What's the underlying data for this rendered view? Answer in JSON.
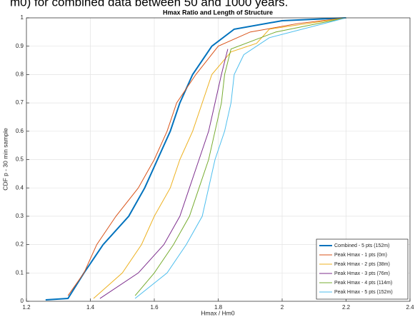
{
  "caption": "m0) for combined data between 50 and 1000 years.",
  "chart_data": {
    "type": "line",
    "title": "Hmax Ratio and Length of Structure",
    "xlabel": "Hmax / Hm0",
    "ylabel": "CDF p - 30 min sample",
    "xlim": [
      1.2,
      2.4
    ],
    "xticks": [
      1.2,
      1.4,
      1.6,
      1.8,
      2,
      2.2,
      2.4
    ],
    "ylim": [
      0,
      1
    ],
    "yticks": [
      0,
      0.1,
      0.2,
      0.3,
      0.4,
      0.5,
      0.6,
      0.7,
      0.8,
      0.9,
      1
    ],
    "grid": true,
    "legend": "bottom-right",
    "series": [
      {
        "name": "Combined - 5 pts (152m)",
        "color": "#0072bd",
        "width": 2,
        "x": [
          1.26,
          1.33,
          1.38,
          1.44,
          1.52,
          1.57,
          1.61,
          1.65,
          1.68,
          1.72,
          1.78,
          1.85,
          2.0,
          2.2
        ],
        "values": [
          0.005,
          0.01,
          0.1,
          0.2,
          0.3,
          0.4,
          0.5,
          0.6,
          0.7,
          0.8,
          0.9,
          0.96,
          0.99,
          1
        ]
      },
      {
        "name": "Peak Hmax - 1 pts (0m)",
        "color": "#d95319",
        "width": 1,
        "x": [
          1.33,
          1.38,
          1.42,
          1.48,
          1.55,
          1.6,
          1.64,
          1.67,
          1.73,
          1.8,
          1.9,
          2.05,
          2.2
        ],
        "values": [
          0.02,
          0.1,
          0.2,
          0.3,
          0.4,
          0.5,
          0.6,
          0.7,
          0.8,
          0.9,
          0.95,
          0.98,
          1
        ]
      },
      {
        "name": "Peak Hmax - 2 pts (38m)",
        "color": "#edb120",
        "width": 1,
        "x": [
          1.41,
          1.5,
          1.56,
          1.6,
          1.65,
          1.68,
          1.72,
          1.75,
          1.78,
          1.84,
          1.92,
          1.96,
          2.2
        ],
        "values": [
          0.01,
          0.1,
          0.2,
          0.3,
          0.4,
          0.5,
          0.6,
          0.7,
          0.8,
          0.88,
          0.91,
          0.96,
          1
        ]
      },
      {
        "name": "Peak Hmax - 3 pts (76m)",
        "color": "#7e2f8e",
        "width": 1,
        "x": [
          1.43,
          1.55,
          1.63,
          1.68,
          1.71,
          1.74,
          1.77,
          1.79,
          1.81,
          1.83
        ],
        "values": [
          0.01,
          0.1,
          0.2,
          0.3,
          0.4,
          0.5,
          0.6,
          0.7,
          0.8,
          0.89
        ]
      },
      {
        "name": "Peak Hmax - 4 pts (114m)",
        "color": "#77ac30",
        "width": 1,
        "x": [
          1.54,
          1.6,
          1.66,
          1.71,
          1.74,
          1.77,
          1.79,
          1.81,
          1.82,
          1.84,
          1.98,
          2.2
        ],
        "values": [
          0.02,
          0.1,
          0.2,
          0.3,
          0.4,
          0.5,
          0.6,
          0.7,
          0.8,
          0.89,
          0.95,
          1
        ]
      },
      {
        "name": "Peak Hmax - 5 pts (152m)",
        "color": "#4dbeee",
        "width": 1,
        "x": [
          1.54,
          1.64,
          1.7,
          1.75,
          1.77,
          1.79,
          1.82,
          1.84,
          1.85,
          1.88,
          1.96,
          2.2
        ],
        "values": [
          0.01,
          0.1,
          0.2,
          0.3,
          0.4,
          0.5,
          0.6,
          0.7,
          0.8,
          0.87,
          0.93,
          1
        ]
      }
    ]
  }
}
